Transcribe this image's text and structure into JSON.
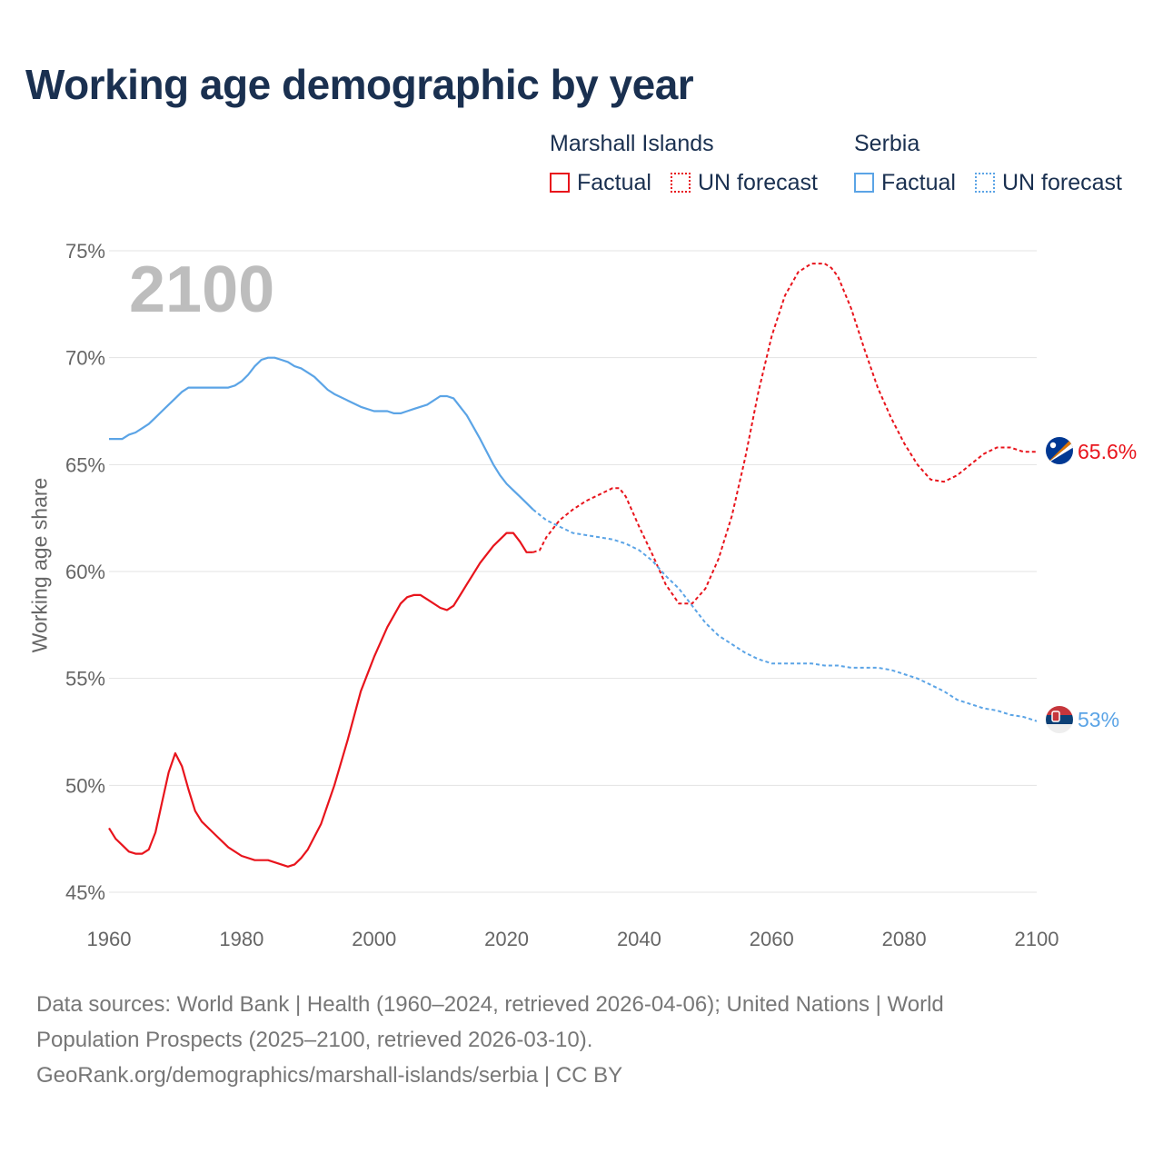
{
  "title": "Working age demographic by year",
  "legend": {
    "groups": [
      {
        "name": "Marshall Islands",
        "color": "#e8141c",
        "factual_label": "Factual",
        "forecast_label": "UN forecast"
      },
      {
        "name": "Serbia",
        "color": "#5ba4e6",
        "factual_label": "Factual",
        "forecast_label": "UN forecast"
      }
    ]
  },
  "year_overlay": "2100",
  "chart_data": {
    "type": "line",
    "title": "Working age demographic by year",
    "xlabel": "",
    "ylabel": "Working age share",
    "xlim": [
      1960,
      2100
    ],
    "ylim": [
      45,
      75
    ],
    "x_ticks": [
      1960,
      1980,
      2000,
      2020,
      2040,
      2060,
      2080,
      2100
    ],
    "y_ticks": [
      45,
      50,
      55,
      60,
      65,
      70,
      75
    ],
    "y_tick_labels": [
      "45%",
      "50%",
      "55%",
      "60%",
      "65%",
      "70%",
      "75%"
    ],
    "grid": true,
    "series": [
      {
        "name": "Marshall Islands",
        "color": "#e8141c",
        "end_label": "65.6%",
        "factual": {
          "x": [
            1960,
            1961,
            1962,
            1963,
            1964,
            1965,
            1966,
            1967,
            1968,
            1969,
            1970,
            1971,
            1972,
            1973,
            1974,
            1976,
            1978,
            1980,
            1982,
            1984,
            1986,
            1987,
            1988,
            1989,
            1990,
            1992,
            1994,
            1996,
            1998,
            2000,
            2002,
            2004,
            2005,
            2006,
            2007,
            2008,
            2010,
            2011,
            2012,
            2014,
            2016,
            2018,
            2020,
            2021,
            2022,
            2023,
            2024
          ],
          "y": [
            48.0,
            47.5,
            47.2,
            46.9,
            46.8,
            46.8,
            47.0,
            47.8,
            49.2,
            50.6,
            51.5,
            50.9,
            49.8,
            48.8,
            48.3,
            47.7,
            47.1,
            46.7,
            46.5,
            46.5,
            46.3,
            46.2,
            46.3,
            46.6,
            47.0,
            48.2,
            50.0,
            52.1,
            54.4,
            56.0,
            57.4,
            58.5,
            58.8,
            58.9,
            58.9,
            58.7,
            58.3,
            58.2,
            58.4,
            59.4,
            60.4,
            61.2,
            61.8,
            61.8,
            61.4,
            60.9,
            60.9
          ]
        },
        "forecast": {
          "x": [
            2024,
            2025,
            2026,
            2028,
            2030,
            2032,
            2034,
            2036,
            2037,
            2038,
            2040,
            2042,
            2044,
            2046,
            2048,
            2050,
            2052,
            2054,
            2056,
            2058,
            2060,
            2062,
            2064,
            2066,
            2068,
            2069,
            2070,
            2072,
            2074,
            2076,
            2078,
            2080,
            2082,
            2084,
            2086,
            2088,
            2090,
            2092,
            2094,
            2096,
            2098,
            2100
          ],
          "y": [
            60.9,
            61.0,
            61.6,
            62.4,
            62.9,
            63.3,
            63.6,
            63.9,
            63.9,
            63.5,
            62.1,
            60.8,
            59.4,
            58.5,
            58.5,
            59.2,
            60.6,
            62.6,
            65.3,
            68.4,
            71.0,
            72.9,
            74.0,
            74.4,
            74.4,
            74.2,
            73.8,
            72.3,
            70.4,
            68.6,
            67.2,
            66.0,
            65.0,
            64.3,
            64.2,
            64.5,
            65.0,
            65.5,
            65.8,
            65.8,
            65.6,
            65.6
          ]
        }
      },
      {
        "name": "Serbia",
        "color": "#5ba4e6",
        "end_label": "53%",
        "factual": {
          "x": [
            1960,
            1961,
            1962,
            1963,
            1964,
            1965,
            1966,
            1967,
            1968,
            1969,
            1970,
            1971,
            1972,
            1974,
            1976,
            1978,
            1979,
            1980,
            1981,
            1982,
            1983,
            1984,
            1985,
            1986,
            1987,
            1988,
            1989,
            1990,
            1991,
            1992,
            1993,
            1994,
            1996,
            1998,
            2000,
            2002,
            2003,
            2004,
            2005,
            2006,
            2008,
            2010,
            2011,
            2012,
            2014,
            2016,
            2018,
            2019,
            2020,
            2021,
            2022,
            2023,
            2024
          ],
          "y": [
            66.2,
            66.2,
            66.2,
            66.4,
            66.5,
            66.7,
            66.9,
            67.2,
            67.5,
            67.8,
            68.1,
            68.4,
            68.6,
            68.6,
            68.6,
            68.6,
            68.7,
            68.9,
            69.2,
            69.6,
            69.9,
            70.0,
            70.0,
            69.9,
            69.8,
            69.6,
            69.5,
            69.3,
            69.1,
            68.8,
            68.5,
            68.3,
            68.0,
            67.7,
            67.5,
            67.5,
            67.4,
            67.4,
            67.5,
            67.6,
            67.8,
            68.2,
            68.2,
            68.1,
            67.3,
            66.2,
            65.0,
            64.5,
            64.1,
            63.8,
            63.5,
            63.2,
            62.9
          ]
        },
        "forecast": {
          "x": [
            2024,
            2026,
            2028,
            2030,
            2032,
            2034,
            2036,
            2038,
            2040,
            2042,
            2044,
            2046,
            2048,
            2050,
            2052,
            2054,
            2056,
            2058,
            2060,
            2062,
            2064,
            2066,
            2068,
            2070,
            2072,
            2074,
            2076,
            2078,
            2080,
            2082,
            2084,
            2086,
            2088,
            2090,
            2092,
            2094,
            2096,
            2098,
            2100
          ],
          "y": [
            62.9,
            62.4,
            62.1,
            61.8,
            61.7,
            61.6,
            61.5,
            61.3,
            61.0,
            60.5,
            59.8,
            59.2,
            58.4,
            57.6,
            57.0,
            56.6,
            56.2,
            55.9,
            55.7,
            55.7,
            55.7,
            55.7,
            55.6,
            55.6,
            55.5,
            55.5,
            55.5,
            55.4,
            55.2,
            55.0,
            54.7,
            54.4,
            54.0,
            53.8,
            53.6,
            53.5,
            53.3,
            53.2,
            53.0
          ]
        }
      }
    ]
  },
  "footer": {
    "line1": "Data sources: World Bank | Health (1960–2024, retrieved 2026-04-06); United Nations | World",
    "line2": "Population Prospects (2025–2100, retrieved 2026-03-10).",
    "line3": "GeoRank.org/demographics/marshall-islands/serbia | CC BY"
  }
}
